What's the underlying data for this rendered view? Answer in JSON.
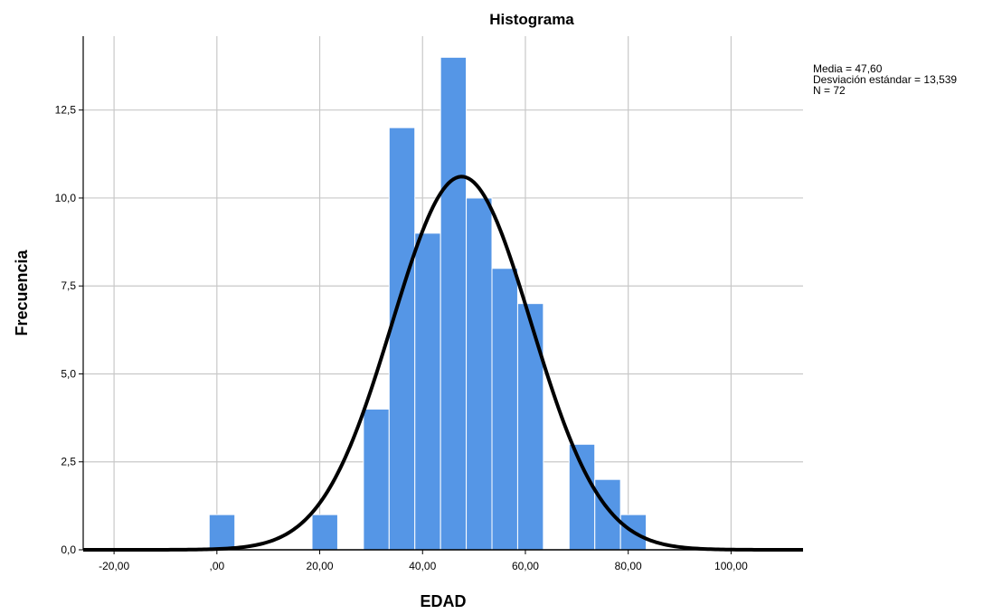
{
  "chart_data": {
    "type": "bar",
    "title": "Histograma",
    "xlabel": "EDAD",
    "ylabel": "Frecuencia",
    "xlim": [
      -26,
      114
    ],
    "ylim": [
      0,
      14.6
    ],
    "grid": true,
    "x_ticks": [
      {
        "value": -20,
        "label": "-20,00"
      },
      {
        "value": 0,
        "label": ",00"
      },
      {
        "value": 20,
        "label": "20,00"
      },
      {
        "value": 40,
        "label": "40,00"
      },
      {
        "value": 60,
        "label": "60,00"
      },
      {
        "value": 80,
        "label": "80,00"
      },
      {
        "value": 100,
        "label": "100,00"
      }
    ],
    "y_ticks": [
      {
        "value": 0,
        "label": "0,0"
      },
      {
        "value": 2.5,
        "label": "2,5"
      },
      {
        "value": 5,
        "label": "5,0"
      },
      {
        "value": 7.5,
        "label": "7,5"
      },
      {
        "value": 10,
        "label": "10,0"
      },
      {
        "value": 12.5,
        "label": "12,5"
      }
    ],
    "bins": [
      {
        "x0": -1.5,
        "x1": 3.5,
        "count": 1
      },
      {
        "x0": 18.5,
        "x1": 23.5,
        "count": 1
      },
      {
        "x0": 28.5,
        "x1": 33.5,
        "count": 4
      },
      {
        "x0": 33.5,
        "x1": 38.5,
        "count": 12
      },
      {
        "x0": 38.5,
        "x1": 43.5,
        "count": 9
      },
      {
        "x0": 43.5,
        "x1": 48.5,
        "count": 14
      },
      {
        "x0": 48.5,
        "x1": 53.5,
        "count": 10
      },
      {
        "x0": 53.5,
        "x1": 58.5,
        "count": 8
      },
      {
        "x0": 58.5,
        "x1": 63.5,
        "count": 7
      },
      {
        "x0": 68.5,
        "x1": 73.5,
        "count": 3
      },
      {
        "x0": 73.5,
        "x1": 78.5,
        "count": 2
      },
      {
        "x0": 78.5,
        "x1": 83.5,
        "count": 1
      }
    ],
    "normal_curve": {
      "mean": 47.6,
      "sd": 13.539,
      "n": 72,
      "bin_width": 5
    },
    "colors": {
      "bar": "#5596e6",
      "bar_edge": "#ffffff",
      "curve": "#000000",
      "grid": "#c8c8c8"
    },
    "stats": {
      "mean_label": "Media = 47,60",
      "sd_label": "Desviación estándar = 13,539",
      "n_label": "N = 72"
    }
  }
}
